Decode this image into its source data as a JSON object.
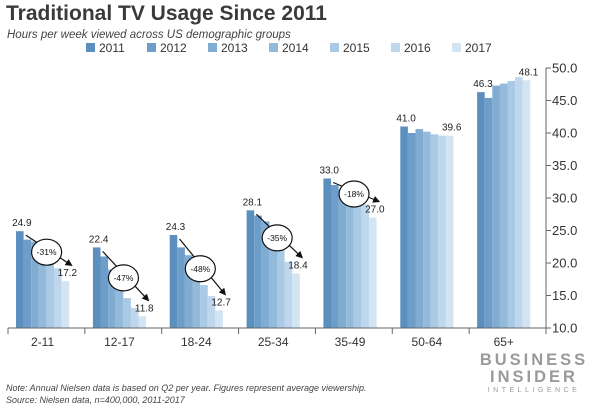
{
  "chart_data": {
    "type": "bar",
    "title": "Traditional TV Usage Since 2011",
    "subtitle": "Hours per week viewed across US demographic groups",
    "categories": [
      "2-11",
      "12-17",
      "18-24",
      "25-34",
      "35-49",
      "50-64",
      "65+"
    ],
    "series": [
      {
        "name": "2011",
        "color": "#5b8fbe",
        "values": [
          24.9,
          22.4,
          24.3,
          28.1,
          33.0,
          41.0,
          46.3
        ]
      },
      {
        "name": "2012",
        "color": "#6d9dc8",
        "values": [
          23.6,
          21.0,
          22.4,
          27.3,
          32.0,
          40.0,
          45.4
        ]
      },
      {
        "name": "2013",
        "color": "#80acd2",
        "values": [
          23.3,
          19.0,
          21.2,
          26.4,
          31.3,
          40.6,
          47.3
        ]
      },
      {
        "name": "2014",
        "color": "#94badb",
        "values": [
          22.0,
          17.0,
          18.9,
          24.3,
          30.1,
          40.2,
          47.6
        ]
      },
      {
        "name": "2015",
        "color": "#a9c9e4",
        "values": [
          20.3,
          14.6,
          16.6,
          22.0,
          29.6,
          39.8,
          48.0
        ]
      },
      {
        "name": "2016",
        "color": "#bed7ec",
        "values": [
          19.2,
          13.1,
          14.9,
          20.2,
          29.0,
          39.6,
          48.6
        ]
      },
      {
        "name": "2017",
        "color": "#d3e5f3",
        "values": [
          17.2,
          11.8,
          12.7,
          18.4,
          27.0,
          39.6,
          48.1
        ]
      }
    ],
    "data_labels": [
      {
        "category": "2-11",
        "start": "24.9",
        "end": "17.2",
        "change": "-31%"
      },
      {
        "category": "12-17",
        "start": "22.4",
        "end": "11.8",
        "change": "-47%"
      },
      {
        "category": "18-24",
        "start": "24.3",
        "end": "12.7",
        "change": "-48%"
      },
      {
        "category": "25-34",
        "start": "28.1",
        "end": "18.4",
        "change": "-35%"
      },
      {
        "category": "35-49",
        "start": "33.0",
        "end": "27.0",
        "change": "-18%"
      },
      {
        "category": "50-64",
        "start": "41.0",
        "end": "39.6",
        "change": ""
      },
      {
        "category": "65+",
        "start": "46.3",
        "end": "48.1",
        "change": ""
      }
    ],
    "ylim": [
      10,
      50
    ],
    "yticks": [
      "10.0",
      "15.0",
      "20.0",
      "25.0",
      "30.0",
      "35.0",
      "40.0",
      "45.0",
      "50.0"
    ],
    "yaxis_position": "right",
    "legend_position": "top",
    "grid": false
  },
  "footer": {
    "note": "Note: Annual Nielsen data is based on Q2 per year. Figures represent average viewership.",
    "source": "Source: Nielsen data, n=400,000, 2011-2017"
  },
  "brand": {
    "line1": "BUSINESS",
    "line2": "INSIDER",
    "line3": "INTELLIGENCE"
  }
}
